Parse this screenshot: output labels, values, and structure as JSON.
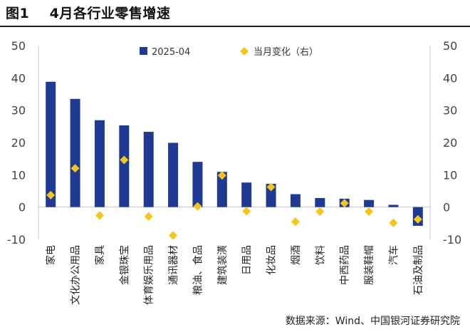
{
  "figure": {
    "title": "图1    4月各行业零售增速",
    "source": "数据来源：Wind、中国银河证券研究院"
  },
  "chart_data": {
    "type": "bar",
    "categories": [
      "家电",
      "文化办公用品",
      "家具",
      "金银珠宝",
      "体育娱乐用品",
      "通讯器材",
      "粮油、食品",
      "建筑装潢",
      "日用品",
      "化妆品",
      "烟酒",
      "饮料",
      "中西药品",
      "服装鞋帽",
      "汽车",
      "石油及制品"
    ],
    "series": [
      {
        "name": "2025-04",
        "type": "bar",
        "axis": "left",
        "color": "#1f3a93",
        "values": [
          38.8,
          33.5,
          26.9,
          25.3,
          23.3,
          19.9,
          14.0,
          10.9,
          7.6,
          7.2,
          4.0,
          2.8,
          2.6,
          2.2,
          0.7,
          -5.8
        ]
      },
      {
        "name": "当月变化（右）",
        "type": "scatter",
        "axis": "right",
        "marker": "diamond",
        "color": "#f5c518",
        "values": [
          3.7,
          12.0,
          -2.6,
          14.6,
          -2.9,
          -8.8,
          0.2,
          9.8,
          -1.3,
          6.2,
          -4.5,
          -1.4,
          1.2,
          -1.4,
          -4.9,
          -3.8
        ]
      }
    ],
    "y_left": {
      "ylim": [
        -10,
        50
      ],
      "ticks": [
        50,
        40,
        30,
        20,
        10,
        0,
        -10
      ]
    },
    "y_right": {
      "ylim": [
        -10,
        50
      ],
      "ticks": [
        50,
        40,
        30,
        20,
        10,
        0,
        -10
      ]
    },
    "grid": false,
    "legend_position": "top"
  }
}
